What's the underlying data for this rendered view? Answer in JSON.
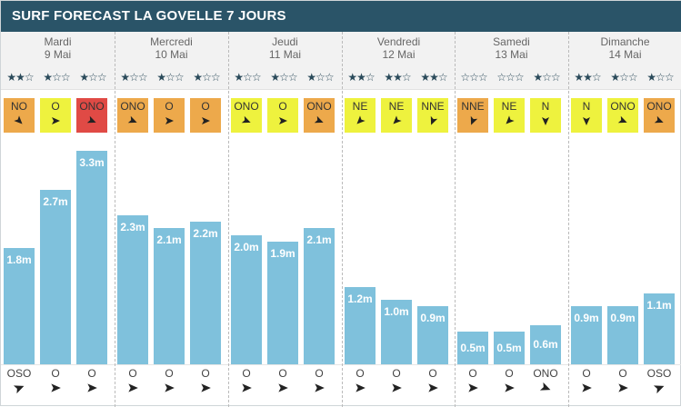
{
  "title": "SURF FORECAST LA GOVELLE 7 JOURS",
  "colors": {
    "header_bg": "#2a5468",
    "bar": "#7fc1dc",
    "wind_weak": "#eef23e",
    "wind_medium": "#eda94b",
    "wind_strong": "#e04a45",
    "star": "#2a4a5a"
  },
  "days": [
    {
      "name": "Mardi",
      "date": "9 Mai",
      "stars": [
        "★★☆",
        "★☆☆",
        "★☆☆"
      ]
    },
    {
      "name": "Mercredi",
      "date": "10 Mai",
      "stars": [
        "★☆☆",
        "★☆☆",
        "★☆☆"
      ]
    },
    {
      "name": "Jeudi",
      "date": "11 Mai",
      "stars": [
        "★☆☆",
        "★☆☆",
        "★☆☆"
      ]
    },
    {
      "name": "Vendredi",
      "date": "12 Mai",
      "stars": [
        "★★☆",
        "★★☆",
        "★★☆"
      ]
    },
    {
      "name": "Samedi",
      "date": "13 Mai",
      "stars": [
        "☆☆☆",
        "☆☆☆",
        "★☆☆"
      ]
    },
    {
      "name": "Dimanche",
      "date": "14 Mai",
      "stars": [
        "★★☆",
        "★☆☆",
        "★☆☆"
      ]
    }
  ],
  "chart_data": {
    "type": "bar",
    "title": "SURF FORECAST LA GOVELLE 7 JOURS",
    "unit": "m",
    "ylim": [
      0,
      3.3
    ],
    "grid": false,
    "categories": [
      "Mardi 9 Mai",
      "Mardi 9 Mai",
      "Mardi 9 Mai",
      "Mercredi 10 Mai",
      "Mercredi 10 Mai",
      "Mercredi 10 Mai",
      "Jeudi 11 Mai",
      "Jeudi 11 Mai",
      "Jeudi 11 Mai",
      "Vendredi 12 Mai",
      "Vendredi 12 Mai",
      "Vendredi 12 Mai",
      "Samedi 13 Mai",
      "Samedi 13 Mai",
      "Samedi 13 Mai",
      "Dimanche 14 Mai",
      "Dimanche 14 Mai",
      "Dimanche 14 Mai"
    ],
    "values": [
      1.8,
      2.7,
      3.3,
      2.3,
      2.1,
      2.2,
      2.0,
      1.9,
      2.1,
      1.2,
      1.0,
      0.9,
      0.5,
      0.5,
      0.6,
      0.9,
      0.9,
      1.1
    ],
    "value_labels": [
      "1.8m",
      "2.7m",
      "3.3m",
      "2.3m",
      "2.1m",
      "2.2m",
      "2.0m",
      "1.9m",
      "2.1m",
      "1.2m",
      "1.0m",
      "0.9m",
      "0.5m",
      "0.5m",
      "0.6m",
      "0.9m",
      "0.9m",
      "1.1m"
    ],
    "wind": [
      {
        "dir": "NO",
        "strength": "medium",
        "angle": 135
      },
      {
        "dir": "O",
        "strength": "weak",
        "angle": 90
      },
      {
        "dir": "ONO",
        "strength": "strong",
        "angle": 112
      },
      {
        "dir": "ONO",
        "strength": "medium",
        "angle": 112
      },
      {
        "dir": "O",
        "strength": "medium",
        "angle": 90
      },
      {
        "dir": "O",
        "strength": "medium",
        "angle": 90
      },
      {
        "dir": "ONO",
        "strength": "weak",
        "angle": 112
      },
      {
        "dir": "O",
        "strength": "weak",
        "angle": 90
      },
      {
        "dir": "ONO",
        "strength": "medium",
        "angle": 112
      },
      {
        "dir": "NE",
        "strength": "weak",
        "angle": 225
      },
      {
        "dir": "NE",
        "strength": "weak",
        "angle": 225
      },
      {
        "dir": "NNE",
        "strength": "weak",
        "angle": 202
      },
      {
        "dir": "NNE",
        "strength": "medium",
        "angle": 202
      },
      {
        "dir": "NE",
        "strength": "weak",
        "angle": 225
      },
      {
        "dir": "N",
        "strength": "weak",
        "angle": 180
      },
      {
        "dir": "N",
        "strength": "weak",
        "angle": 180
      },
      {
        "dir": "ONO",
        "strength": "weak",
        "angle": 112
      },
      {
        "dir": "ONO",
        "strength": "medium",
        "angle": 112
      }
    ],
    "swell": [
      {
        "dir": "OSO",
        "angle": 68
      },
      {
        "dir": "O",
        "angle": 90
      },
      {
        "dir": "O",
        "angle": 90
      },
      {
        "dir": "O",
        "angle": 90
      },
      {
        "dir": "O",
        "angle": 90
      },
      {
        "dir": "O",
        "angle": 90
      },
      {
        "dir": "O",
        "angle": 90
      },
      {
        "dir": "O",
        "angle": 90
      },
      {
        "dir": "O",
        "angle": 90
      },
      {
        "dir": "O",
        "angle": 90
      },
      {
        "dir": "O",
        "angle": 90
      },
      {
        "dir": "O",
        "angle": 90
      },
      {
        "dir": "O",
        "angle": 90
      },
      {
        "dir": "O",
        "angle": 90
      },
      {
        "dir": "ONO",
        "angle": 112
      },
      {
        "dir": "O",
        "angle": 90
      },
      {
        "dir": "O",
        "angle": 90
      },
      {
        "dir": "OSO",
        "angle": 68
      }
    ]
  }
}
